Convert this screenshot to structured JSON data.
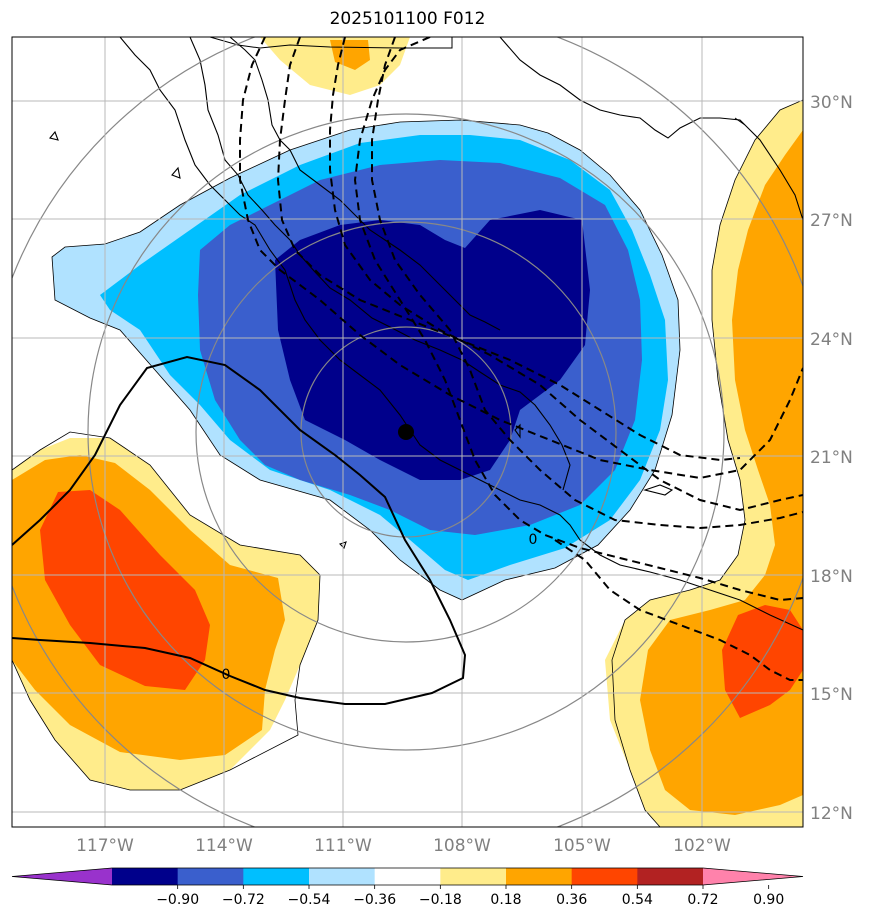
{
  "title": "2025101100 F012",
  "lat_labels": [
    "30°N",
    "27°N",
    "24°N",
    "21°N",
    "18°N",
    "15°N",
    "12°N"
  ],
  "lon_labels": [
    "117°W",
    "114°W",
    "111°W",
    "108°W",
    "105°W",
    "102°W"
  ],
  "contour_labels": [
    "0",
    "0"
  ],
  "colorbar": {
    "tick_labels": [
      "−0.90",
      "−0.72",
      "−0.54",
      "−0.36",
      "−0.18",
      "0.18",
      "0.36",
      "0.54",
      "0.72",
      "0.90"
    ],
    "colors": [
      "#9932cc",
      "#00008b",
      "#3a5fcd",
      "#00bfff",
      "#b0e2ff",
      "#ffffff",
      "#ffec8b",
      "#ffa500",
      "#ff4500",
      "#b22222",
      "#ff82ab"
    ]
  },
  "map_colors": {
    "neg_strong": "#00008b",
    "neg_mid": "#3a5fcd",
    "neg_light": "#00bfff",
    "neg_faint": "#b0e2ff",
    "pos_faint": "#ffec8b",
    "pos_mid": "#ffa500",
    "pos_strong": "#ff4500"
  }
}
